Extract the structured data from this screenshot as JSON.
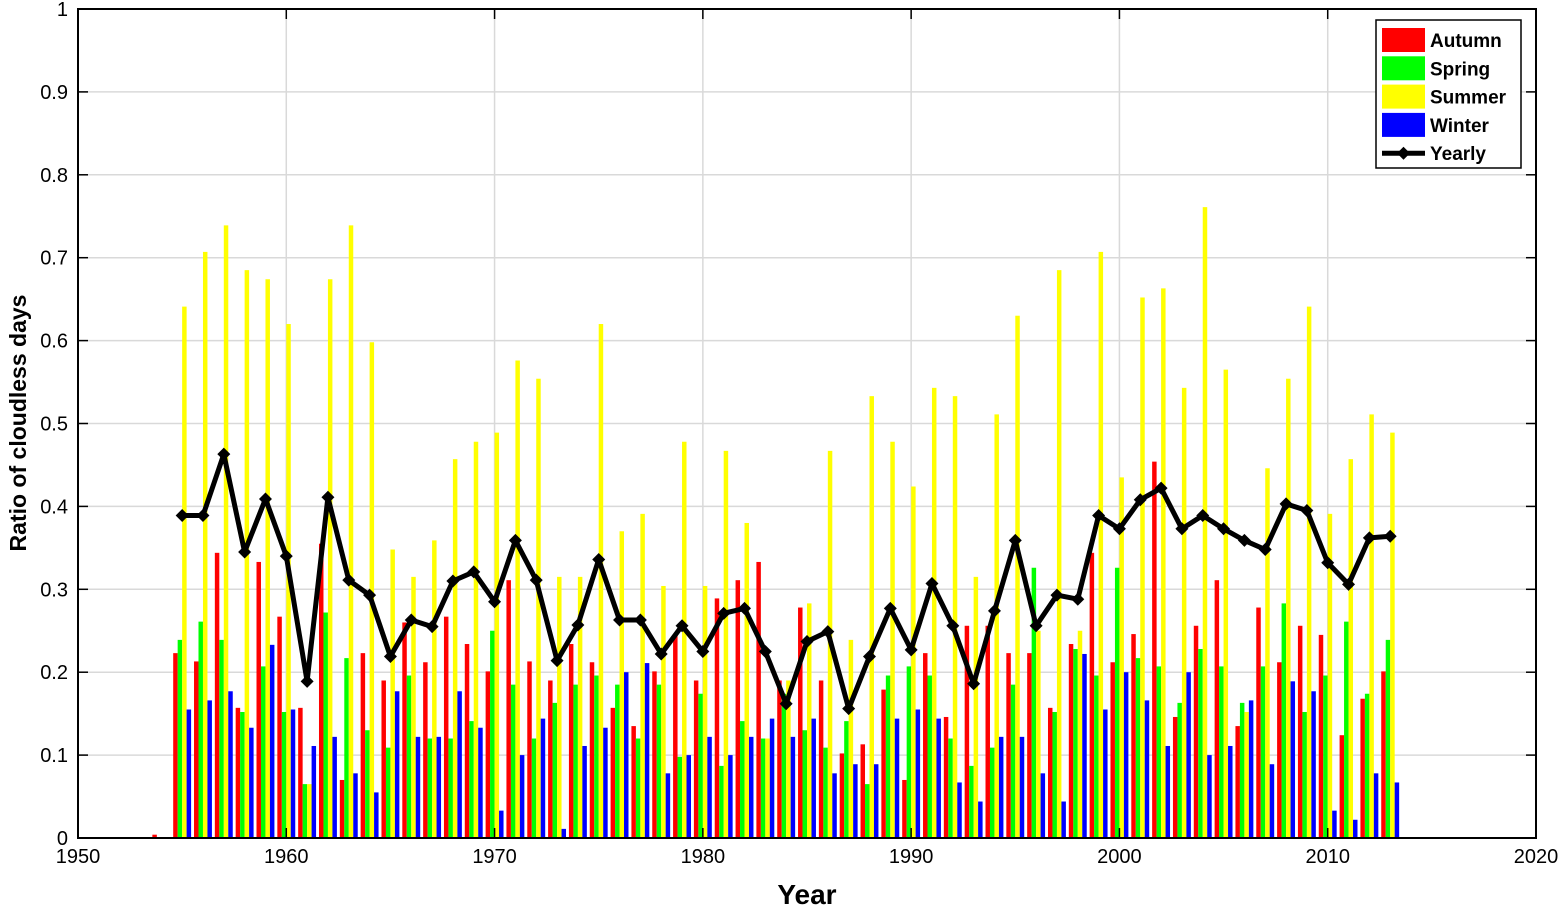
{
  "chart_data": {
    "type": "bar",
    "title": "",
    "xlabel": "Year",
    "ylabel": "Ratio of cloudless days",
    "xlim": [
      1950,
      2020
    ],
    "ylim": [
      0,
      1
    ],
    "x_ticks": [
      "1950",
      "1960",
      "1970",
      "1980",
      "1990",
      "2000",
      "2010",
      "2020"
    ],
    "y_ticks": [
      "0",
      "0.1",
      "0.2",
      "0.3",
      "0.4",
      "0.5",
      "0.6",
      "0.7",
      "0.8",
      "0.9",
      "1"
    ],
    "grid": true,
    "legend_position": "top-right",
    "colors": {
      "Autumn": "#ff0000",
      "Spring": "#00ff00",
      "Summer": "#ffff00",
      "Winter": "#0000ff",
      "Yearly": "#000000"
    },
    "years": [
      1953,
      1954,
      1955,
      1956,
      1957,
      1958,
      1959,
      1960,
      1961,
      1962,
      1963,
      1964,
      1965,
      1966,
      1967,
      1968,
      1969,
      1970,
      1971,
      1972,
      1973,
      1974,
      1975,
      1976,
      1977,
      1978,
      1979,
      1980,
      1981,
      1982,
      1983,
      1984,
      1985,
      1986,
      1987,
      1988,
      1989,
      1990,
      1991,
      1992,
      1993,
      1994,
      1995,
      1996,
      1997,
      1998,
      1999,
      2000,
      2001,
      2002,
      2003,
      2004,
      2005,
      2006,
      2007,
      2008,
      2009,
      2010,
      2011,
      2012
    ],
    "series": [
      {
        "name": "Autumn",
        "kind": "bar",
        "values": [
          0.004,
          0.223,
          0.213,
          0.344,
          0.157,
          0.333,
          0.267,
          0.157,
          0.355,
          0.07,
          0.223,
          0.19,
          0.26,
          0.212,
          0.267,
          0.234,
          0.201,
          0.311,
          0.213,
          0.19,
          0.234,
          0.212,
          0.157,
          0.135,
          0.201,
          0.246,
          0.19,
          0.289,
          0.311,
          0.333,
          0.19,
          0.278,
          0.19,
          0.102,
          0.113,
          0.179,
          0.07,
          0.223,
          0.146,
          0.256,
          0.256,
          0.223,
          0.223,
          0.157,
          0.234,
          0.344,
          0.212,
          0.246,
          0.454,
          0.146,
          0.256,
          0.311,
          0.135,
          0.278,
          0.212,
          0.256,
          0.245,
          0.124,
          0.168,
          0.201
        ]
      },
      {
        "name": "Spring",
        "kind": "bar",
        "values": [
          0,
          0.239,
          0.261,
          0.239,
          0.152,
          0.207,
          0.152,
          0.065,
          0.272,
          0.217,
          0.13,
          0.109,
          0.196,
          0.12,
          0.12,
          0.141,
          0.25,
          0.185,
          0.12,
          0.163,
          0.185,
          0.196,
          0.185,
          0.12,
          0.185,
          0.098,
          0.174,
          0.087,
          0.141,
          0.12,
          0.174,
          0.13,
          0.109,
          0.141,
          0.065,
          0.196,
          0.207,
          0.196,
          0.12,
          0.087,
          0.109,
          0.185,
          0.326,
          0.152,
          0.228,
          0.196,
          0.326,
          0.217,
          0.207,
          0.163,
          0.228,
          0.207,
          0.163,
          0.207,
          0.283,
          0.152,
          0.196,
          0.261,
          0.174,
          0.239
        ]
      },
      {
        "name": "Summer",
        "kind": "bar",
        "values": [
          0,
          0.641,
          0.707,
          0.739,
          0.685,
          0.674,
          0.62,
          0.065,
          0.674,
          0.739,
          0.598,
          0.348,
          0.315,
          0.359,
          0.457,
          0.478,
          0.489,
          0.576,
          0.554,
          0.315,
          0.315,
          0.62,
          0.37,
          0.391,
          0.304,
          0.478,
          0.304,
          0.467,
          0.38,
          0.12,
          0.19,
          0.283,
          0.467,
          0.239,
          0.533,
          0.478,
          0.424,
          0.543,
          0.533,
          0.315,
          0.511,
          0.63,
          0.25,
          0.685,
          0.25,
          0.707,
          0.435,
          0.652,
          0.663,
          0.543,
          0.761,
          0.565,
          0.152,
          0.446,
          0.554,
          0.641,
          0.391,
          0.457,
          0.511,
          0.489
        ]
      },
      {
        "name": "Winter",
        "kind": "bar",
        "values": [
          0,
          0.155,
          0.166,
          0.177,
          0.133,
          0.233,
          0.155,
          0.111,
          0.122,
          0.078,
          0.055,
          0.177,
          0.122,
          0.122,
          0.177,
          0.133,
          0.033,
          0.1,
          0.144,
          0.011,
          0.111,
          0.133,
          0.2,
          0.211,
          0.078,
          0.1,
          0.122,
          0.1,
          0.122,
          0.144,
          0.122,
          0.144,
          0.078,
          0.089,
          0.089,
          0.144,
          0.155,
          0.144,
          0.067,
          0.044,
          0.122,
          0.122,
          0.078,
          0.044,
          0.222,
          0.155,
          0.2,
          0.166,
          0.111,
          0.2,
          0.1,
          0.111,
          0.166,
          0.089,
          0.189,
          0.177,
          0.033,
          0.022,
          0.078,
          0.067
        ]
      },
      {
        "name": "Yearly",
        "kind": "line",
        "values": [
          null,
          0.389,
          0.389,
          0.463,
          0.345,
          0.409,
          0.34,
          0.189,
          0.411,
          0.311,
          0.293,
          0.219,
          0.263,
          0.255,
          0.31,
          0.321,
          0.285,
          0.359,
          0.311,
          0.214,
          0.257,
          0.336,
          0.263,
          0.263,
          0.222,
          0.256,
          0.225,
          0.271,
          0.277,
          0.225,
          0.162,
          0.237,
          0.249,
          0.156,
          0.219,
          0.277,
          0.227,
          0.307,
          0.256,
          0.186,
          0.274,
          0.359,
          0.256,
          0.293,
          0.288,
          0.389,
          0.373,
          0.408,
          0.422,
          0.373,
          0.389,
          0.373,
          0.359,
          0.348,
          0.403,
          0.395,
          0.332,
          0.306,
          0.362,
          0.364
        ]
      }
    ]
  }
}
